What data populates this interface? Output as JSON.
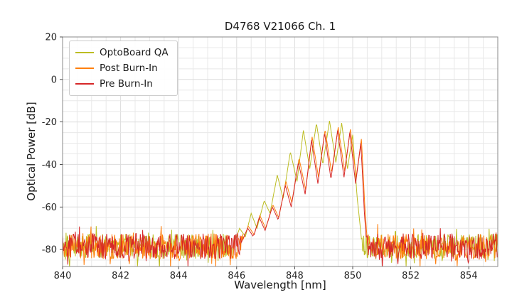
{
  "title": "D4768 V21066 Ch. 1",
  "chart_data": {
    "type": "line",
    "title": "D4768 V21066 Ch. 1",
    "xlabel": "Wavelength [nm]",
    "ylabel": "Optical Power [dB]",
    "xlim": [
      840,
      855
    ],
    "ylim": [
      -88,
      20
    ],
    "xticks": [
      840,
      842,
      844,
      846,
      848,
      850,
      852,
      854
    ],
    "yticks": [
      20,
      0,
      -20,
      -40,
      -60,
      -80
    ],
    "grid": {
      "on": true,
      "x_step": 0.5,
      "y_step": 5,
      "minor_color": "#e8e8e8",
      "major_color": "#dcdcdc"
    },
    "legend": {
      "position": "upper-left"
    },
    "noise_floor": {
      "mean": -78.5,
      "half_spread": 6,
      "x_step": 0.02
    },
    "series": [
      {
        "name": "OptoBoard QA",
        "color": "#bcbd22",
        "seed": 101,
        "envelope": [
          [
            845.9,
            -78
          ],
          [
            846.1,
            -70
          ],
          [
            846.3,
            -74
          ],
          [
            846.5,
            -63
          ],
          [
            846.7,
            -70
          ],
          [
            846.95,
            -57
          ],
          [
            847.15,
            -63
          ],
          [
            847.4,
            -45
          ],
          [
            847.6,
            -56
          ],
          [
            847.85,
            -34
          ],
          [
            848.08,
            -48
          ],
          [
            848.3,
            -24
          ],
          [
            848.52,
            -42
          ],
          [
            848.75,
            -20.5
          ],
          [
            848.97,
            -40
          ],
          [
            849.2,
            -19.5
          ],
          [
            849.42,
            -39
          ],
          [
            849.62,
            -20.5
          ],
          [
            849.82,
            -42
          ],
          [
            850.0,
            -26
          ],
          [
            850.15,
            -55
          ],
          [
            850.28,
            -72
          ],
          [
            850.38,
            -87
          ]
        ]
      },
      {
        "name": "Post Burn-In",
        "color": "#ff7f0e",
        "seed": 202,
        "envelope": [
          [
            846.2,
            -76
          ],
          [
            846.4,
            -69
          ],
          [
            846.6,
            -73
          ],
          [
            846.8,
            -64
          ],
          [
            847.0,
            -70
          ],
          [
            847.25,
            -59
          ],
          [
            847.45,
            -65
          ],
          [
            847.7,
            -48
          ],
          [
            847.9,
            -58
          ],
          [
            848.15,
            -37
          ],
          [
            848.38,
            -52
          ],
          [
            848.6,
            -27
          ],
          [
            848.82,
            -46
          ],
          [
            849.05,
            -23.5
          ],
          [
            849.27,
            -44
          ],
          [
            849.5,
            -22.5
          ],
          [
            849.72,
            -43
          ],
          [
            849.92,
            -23.5
          ],
          [
            850.12,
            -46
          ],
          [
            850.3,
            -28
          ],
          [
            850.42,
            -60
          ],
          [
            850.52,
            -80
          ],
          [
            850.56,
            -88
          ]
        ]
      },
      {
        "name": "Pre Burn-In",
        "color": "#d62728",
        "seed": 303,
        "envelope": [
          [
            846.15,
            -77
          ],
          [
            846.38,
            -70
          ],
          [
            846.58,
            -74
          ],
          [
            846.78,
            -65
          ],
          [
            846.98,
            -71
          ],
          [
            847.23,
            -60
          ],
          [
            847.43,
            -66
          ],
          [
            847.68,
            -50
          ],
          [
            847.88,
            -60
          ],
          [
            848.13,
            -39
          ],
          [
            848.36,
            -54
          ],
          [
            848.58,
            -28.5
          ],
          [
            848.8,
            -49
          ],
          [
            849.03,
            -25
          ],
          [
            849.25,
            -47
          ],
          [
            849.48,
            -24
          ],
          [
            849.7,
            -46
          ],
          [
            849.9,
            -25
          ],
          [
            850.1,
            -49
          ],
          [
            850.28,
            -30
          ],
          [
            850.4,
            -62
          ],
          [
            850.5,
            -82
          ],
          [
            850.54,
            -88
          ]
        ]
      }
    ]
  }
}
